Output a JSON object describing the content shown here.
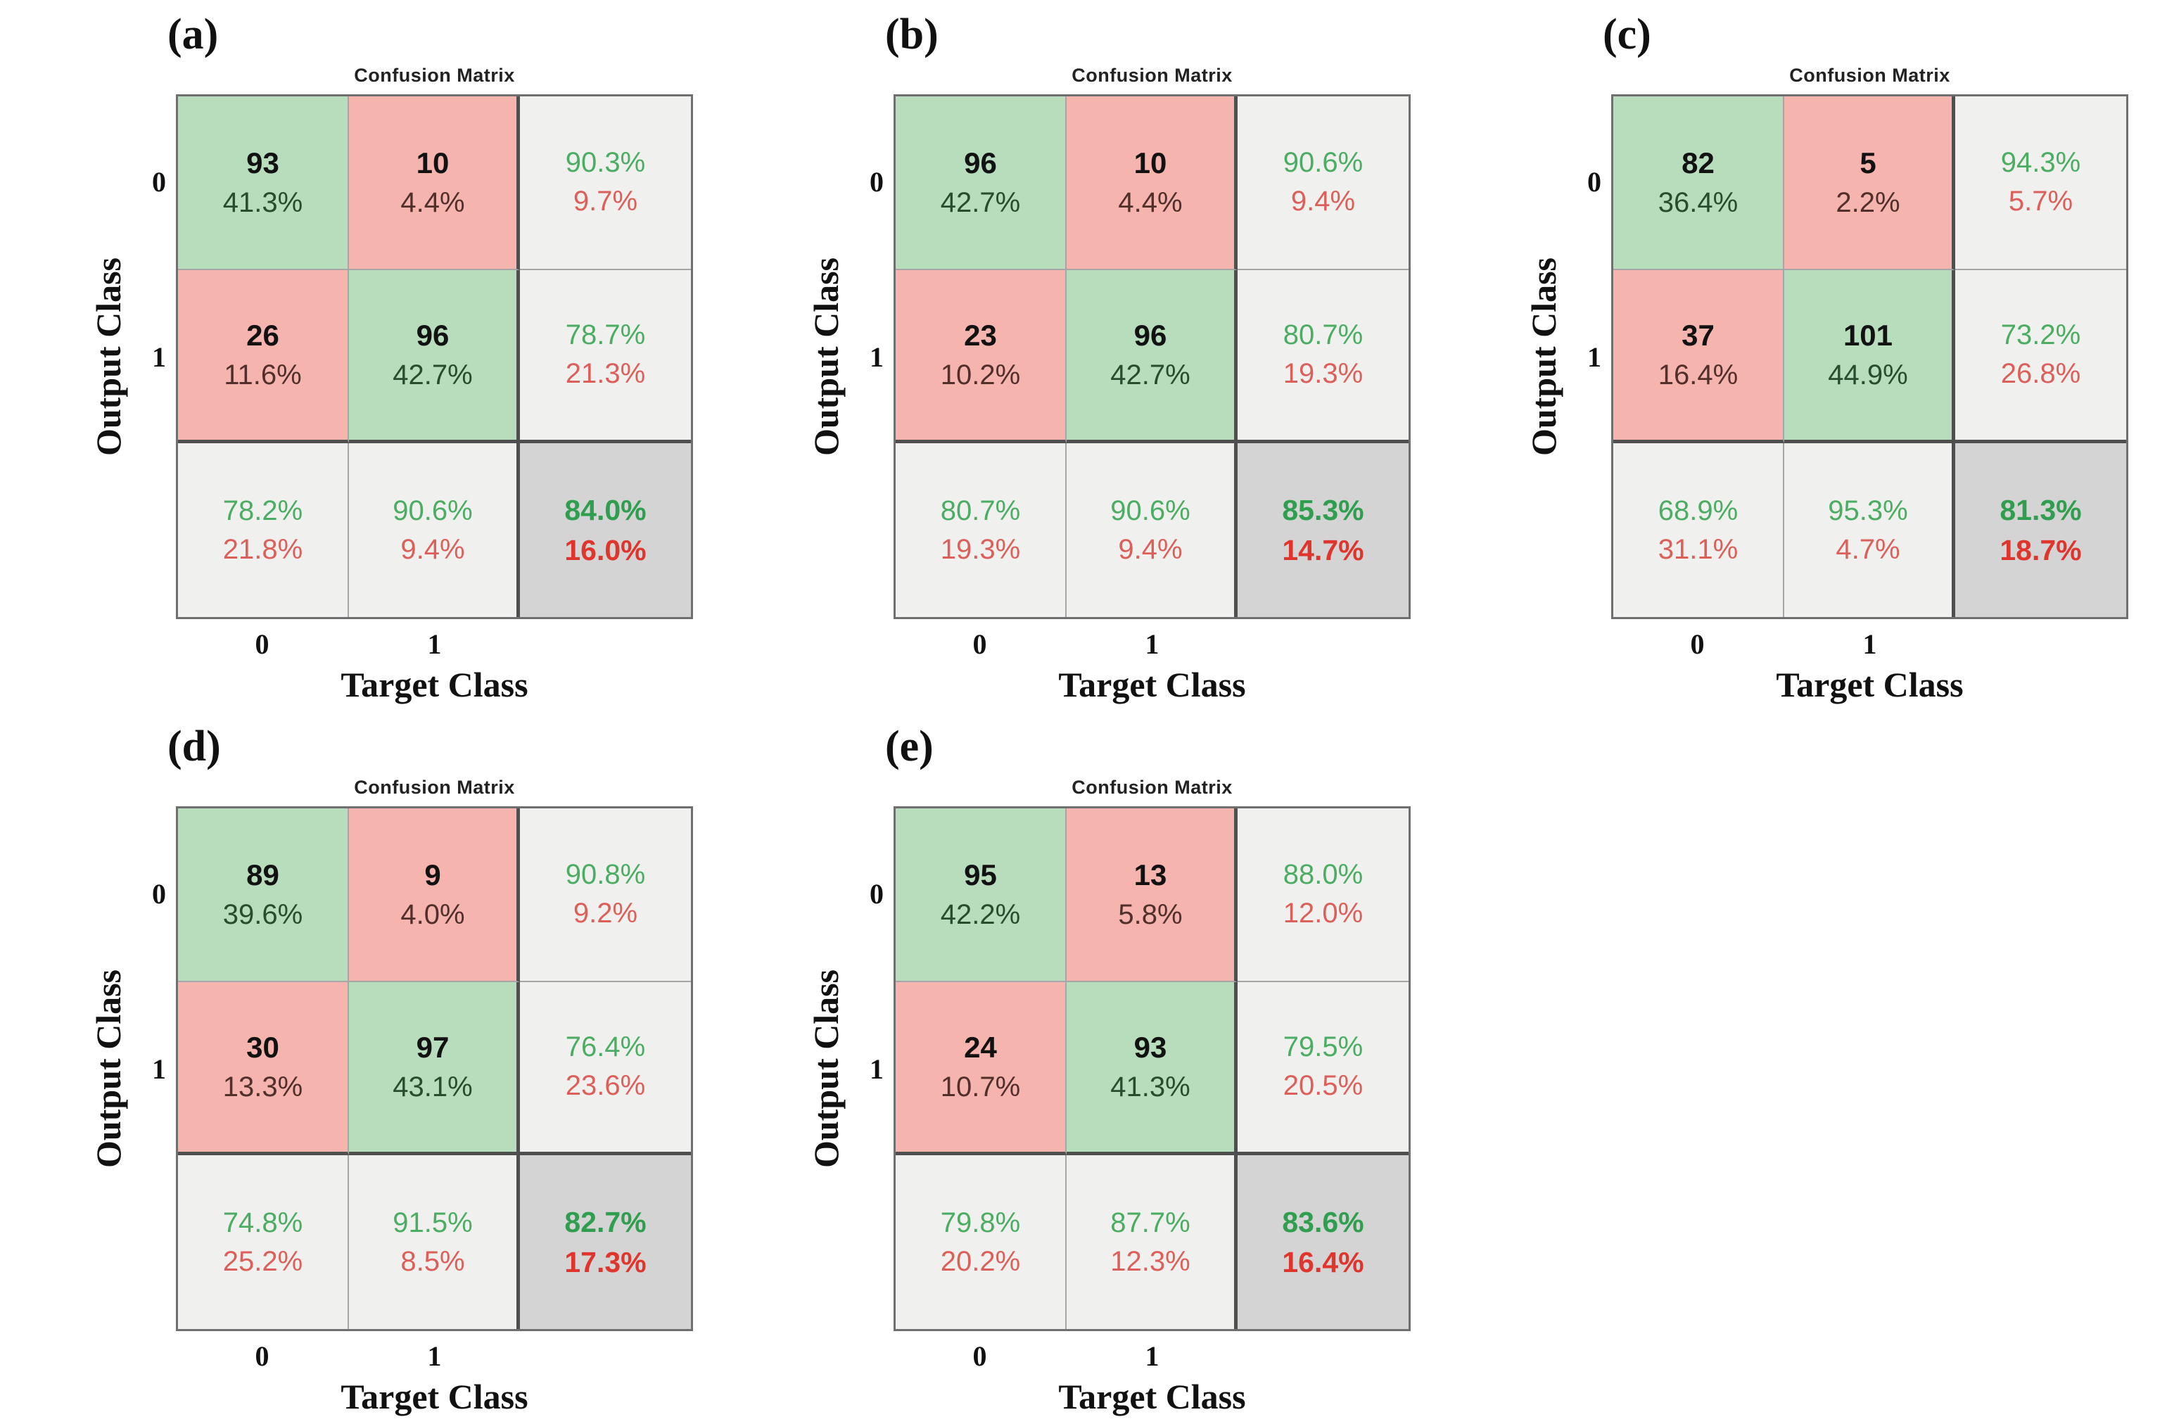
{
  "figure_type": "confusion-matrix-figure",
  "colors": {
    "cell_green": "#b8ddbd",
    "cell_red": "#f6b4ae",
    "cell_summary_gray": "#f0f0ef",
    "cell_total_gray": "#d4d4d4",
    "text_green": "#4bad62",
    "text_red": "#dc6059",
    "text_green_bold": "#2f9e4e",
    "text_red_bold": "#df352c",
    "border_thin": "#a6a6a6",
    "border_thick": "#4f4f4f",
    "border_outer": "#6f6f6f"
  },
  "chart_data": [
    {
      "type": "heatmap",
      "panel": "(a)",
      "title": "Confusion Matrix",
      "xlabel": "Target Class",
      "ylabel": "Output Class",
      "classes": [
        "0",
        "1"
      ],
      "counts": [
        [
          93,
          10
        ],
        [
          26,
          96
        ]
      ],
      "cell_pct": [
        [
          "41.3%",
          "4.4%"
        ],
        [
          "11.6%",
          "42.7%"
        ]
      ],
      "row_summary": [
        [
          "90.3%",
          "9.7%"
        ],
        [
          "78.7%",
          "21.3%"
        ]
      ],
      "col_summary": [
        [
          "78.2%",
          "21.8%"
        ],
        [
          "90.6%",
          "9.4%"
        ]
      ],
      "overall": [
        "84.0%",
        "16.0%"
      ]
    },
    {
      "type": "heatmap",
      "panel": "(b)",
      "title": "Confusion Matrix",
      "xlabel": "Target Class",
      "ylabel": "Output Class",
      "classes": [
        "0",
        "1"
      ],
      "counts": [
        [
          96,
          10
        ],
        [
          23,
          96
        ]
      ],
      "cell_pct": [
        [
          "42.7%",
          "4.4%"
        ],
        [
          "10.2%",
          "42.7%"
        ]
      ],
      "row_summary": [
        [
          "90.6%",
          "9.4%"
        ],
        [
          "80.7%",
          "19.3%"
        ]
      ],
      "col_summary": [
        [
          "80.7%",
          "19.3%"
        ],
        [
          "90.6%",
          "9.4%"
        ]
      ],
      "overall": [
        "85.3%",
        "14.7%"
      ]
    },
    {
      "type": "heatmap",
      "panel": "(c)",
      "title": "Confusion Matrix",
      "xlabel": "Target Class",
      "ylabel": "Output Class",
      "classes": [
        "0",
        "1"
      ],
      "counts": [
        [
          82,
          5
        ],
        [
          37,
          101
        ]
      ],
      "cell_pct": [
        [
          "36.4%",
          "2.2%"
        ],
        [
          "16.4%",
          "44.9%"
        ]
      ],
      "row_summary": [
        [
          "94.3%",
          "5.7%"
        ],
        [
          "73.2%",
          "26.8%"
        ]
      ],
      "col_summary": [
        [
          "68.9%",
          "31.1%"
        ],
        [
          "95.3%",
          "4.7%"
        ]
      ],
      "overall": [
        "81.3%",
        "18.7%"
      ]
    },
    {
      "type": "heatmap",
      "panel": "(d)",
      "title": "Confusion Matrix",
      "xlabel": "Target Class",
      "ylabel": "Output Class",
      "classes": [
        "0",
        "1"
      ],
      "counts": [
        [
          89,
          9
        ],
        [
          30,
          97
        ]
      ],
      "cell_pct": [
        [
          "39.6%",
          "4.0%"
        ],
        [
          "13.3%",
          "43.1%"
        ]
      ],
      "row_summary": [
        [
          "90.8%",
          "9.2%"
        ],
        [
          "76.4%",
          "23.6%"
        ]
      ],
      "col_summary": [
        [
          "74.8%",
          "25.2%"
        ],
        [
          "91.5%",
          "8.5%"
        ]
      ],
      "overall": [
        "82.7%",
        "17.3%"
      ]
    },
    {
      "type": "heatmap",
      "panel": "(e)",
      "title": "Confusion Matrix",
      "xlabel": "Target Class",
      "ylabel": "Output Class",
      "classes": [
        "0",
        "1"
      ],
      "counts": [
        [
          95,
          13
        ],
        [
          24,
          93
        ]
      ],
      "cell_pct": [
        [
          "42.2%",
          "5.8%"
        ],
        [
          "10.7%",
          "41.3%"
        ]
      ],
      "row_summary": [
        [
          "88.0%",
          "12.0%"
        ],
        [
          "79.5%",
          "20.5%"
        ]
      ],
      "col_summary": [
        [
          "79.8%",
          "20.2%"
        ],
        [
          "87.7%",
          "12.3%"
        ]
      ],
      "overall": [
        "83.6%",
        "16.4%"
      ]
    }
  ]
}
